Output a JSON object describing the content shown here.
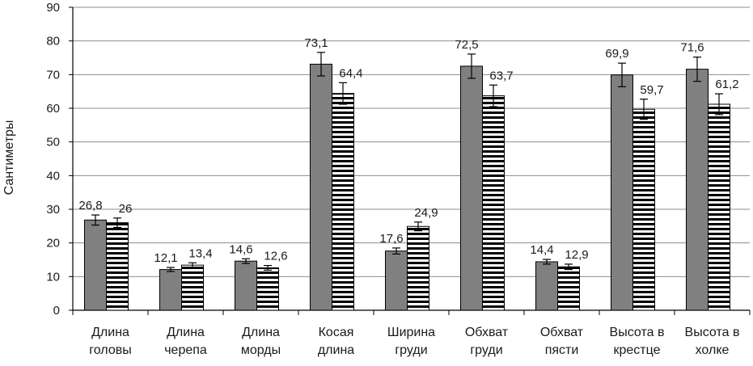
{
  "chart_data": {
    "type": "bar",
    "ylabel": "Сантиметры",
    "xlabel": "",
    "ylim": [
      0,
      90
    ],
    "yticks": [
      0,
      10,
      20,
      30,
      40,
      50,
      60,
      70,
      80,
      90
    ],
    "grid": true,
    "legend": "none",
    "categories": [
      [
        "Длина",
        "головы"
      ],
      [
        "Длина",
        "черепа"
      ],
      [
        "Длина",
        "морды"
      ],
      [
        "Косая",
        "длина"
      ],
      [
        "Ширина",
        "груди"
      ],
      [
        "Обхват",
        "груди"
      ],
      [
        "Обхват",
        "пясти"
      ],
      [
        "Высота в",
        "крестце"
      ],
      [
        "Высота в",
        "холке"
      ]
    ],
    "series": [
      {
        "fill": "#808080",
        "pattern": "solid",
        "values": [
          26.8,
          12.1,
          14.6,
          73.1,
          17.6,
          72.5,
          14.4,
          69.9,
          71.6
        ],
        "labels": [
          "26,8",
          "12,1",
          "14,6",
          "73,1",
          "17,6",
          "72,5",
          "14,4",
          "69,9",
          "71,6"
        ],
        "errors": [
          1.5,
          0.6,
          0.7,
          3.5,
          0.9,
          3.6,
          0.7,
          3.5,
          3.6
        ]
      },
      {
        "fill": "#ffffff",
        "pattern": "horizontal-stripes",
        "values": [
          26,
          13.4,
          12.6,
          64.4,
          24.9,
          63.7,
          12.9,
          59.7,
          61.2
        ],
        "labels": [
          "26",
          "13,4",
          "12,6",
          "64,4",
          "24,9",
          "63,7",
          "12,9",
          "59,7",
          "61,2"
        ],
        "errors": [
          1.4,
          0.7,
          0.7,
          3.2,
          1.3,
          3.2,
          0.8,
          3.0,
          3.1
        ]
      }
    ]
  }
}
